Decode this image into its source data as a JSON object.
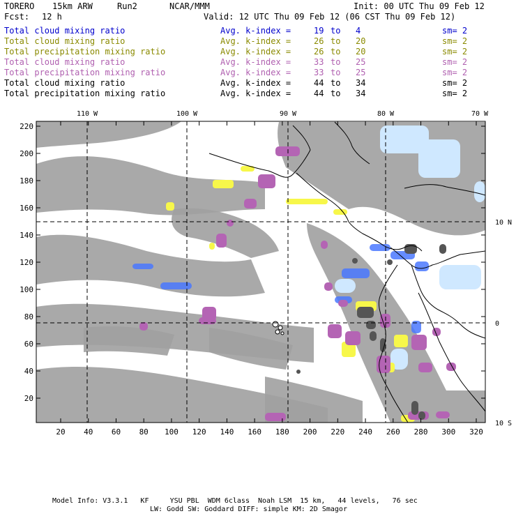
{
  "header": {
    "model": "TORERO",
    "resolution": "15km ARW",
    "run": "Run2",
    "org": "NCAR/MMM",
    "init": "Init: 00 UTC Thu 09 Feb 12",
    "fcst_label": "Fcst:",
    "fcst_value": "12 h",
    "valid": "Valid: 12 UTC Thu 09 Feb 12 (06 CST Thu 09 Feb 12)"
  },
  "legend": [
    {
      "field": "Total cloud mixing ratio",
      "kindex": "Avg. k-index =",
      "from": "19",
      "to_word": "to",
      "to": "4",
      "sm": "sm= 2",
      "color": "#0000cc"
    },
    {
      "field": "Total cloud mixing ratio",
      "kindex": "Avg. k-index =",
      "from": "26",
      "to_word": "to",
      "to": "20",
      "sm": "sm= 2",
      "color": "#8a8a00"
    },
    {
      "field": "Total precipitation mixing ratio",
      "kindex": "Avg. k-index =",
      "from": "26",
      "to_word": "to",
      "to": "20",
      "sm": "sm= 2",
      "color": "#8a8a00"
    },
    {
      "field": "Total cloud mixing ratio",
      "kindex": "Avg. k-index =",
      "from": "33",
      "to_word": "to",
      "to": "25",
      "sm": "sm= 2",
      "color": "#b060b0"
    },
    {
      "field": "Total precipitation mixing ratio",
      "kindex": "Avg. k-index =",
      "from": "33",
      "to_word": "to",
      "to": "25",
      "sm": "sm= 2",
      "color": "#b060b0"
    },
    {
      "field": "Total cloud mixing ratio",
      "kindex": "Avg. k-index =",
      "from": "44",
      "to_word": "to",
      "to": "34",
      "sm": "sm= 2",
      "color": "#000000"
    },
    {
      "field": "Total precipitation mixing ratio",
      "kindex": "Avg. k-index =",
      "from": "44",
      "to_word": "to",
      "to": "34",
      "sm": "sm= 2",
      "color": "#000000"
    }
  ],
  "map": {
    "lon_labels": [
      "110 W",
      "100 W",
      "90 W",
      "80 W",
      "70 W"
    ],
    "lat_labels": [
      "10 N",
      "0",
      "10 S"
    ],
    "x_ticks": [
      "20",
      "40",
      "60",
      "80",
      "100",
      "120",
      "140",
      "160",
      "180",
      "200",
      "220",
      "240",
      "260",
      "280",
      "300",
      "320"
    ],
    "y_ticks": [
      "20",
      "40",
      "60",
      "80",
      "100",
      "120",
      "140",
      "160",
      "180",
      "200",
      "220"
    ],
    "colors": {
      "gray": "#a0a0a0",
      "darkgray": "#555555",
      "yellow": "#f7f74a",
      "purple": "#b464b4",
      "blue": "#4a78ff",
      "lightblue": "#cfe8ff",
      "coast": "#000000"
    }
  },
  "footer": {
    "line1": "Model Info: V3.3.1   KF     YSU PBL  WDM 6class  Noah LSM  15 km,   44 levels,   76 sec",
    "line2": "LW: Godd SW: Goddard DIFF: simple KM: 2D Smagor"
  }
}
